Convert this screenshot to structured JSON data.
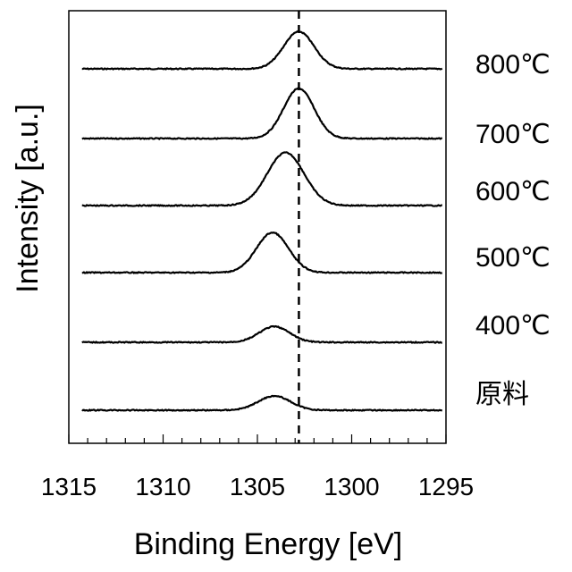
{
  "chart_data": {
    "type": "line",
    "xlabel": "Binding Energy [eV]",
    "ylabel": "Intensity [a.u.]",
    "xlim": [
      1315,
      1295
    ],
    "x_reversed": true,
    "x_ticks": [
      1315,
      1310,
      1305,
      1300,
      1295
    ],
    "x_tick_labels": [
      "1315",
      "1310",
      "1305",
      "1300",
      "1295"
    ],
    "minor_tick_step": 1,
    "y_ticks_shown": false,
    "grid": false,
    "reference_line": {
      "x": 1302.8,
      "style": "dashed"
    },
    "series": [
      {
        "name": "800℃",
        "peak_center": 1302.8,
        "peak_height": 0.26,
        "peak_fwhm": 1.9
      },
      {
        "name": "700℃",
        "peak_center": 1302.8,
        "peak_height": 0.35,
        "peak_fwhm": 1.9
      },
      {
        "name": "600℃",
        "peak_center": 1303.5,
        "peak_height": 0.37,
        "peak_fwhm": 2.3
      },
      {
        "name": "500℃",
        "peak_center": 1304.2,
        "peak_height": 0.28,
        "peak_fwhm": 2.0
      },
      {
        "name": "400℃",
        "peak_center": 1304.1,
        "peak_height": 0.11,
        "peak_fwhm": 1.9
      },
      {
        "name": "原料",
        "peak_center": 1304.1,
        "peak_height": 0.1,
        "peak_fwhm": 2.0
      }
    ]
  }
}
